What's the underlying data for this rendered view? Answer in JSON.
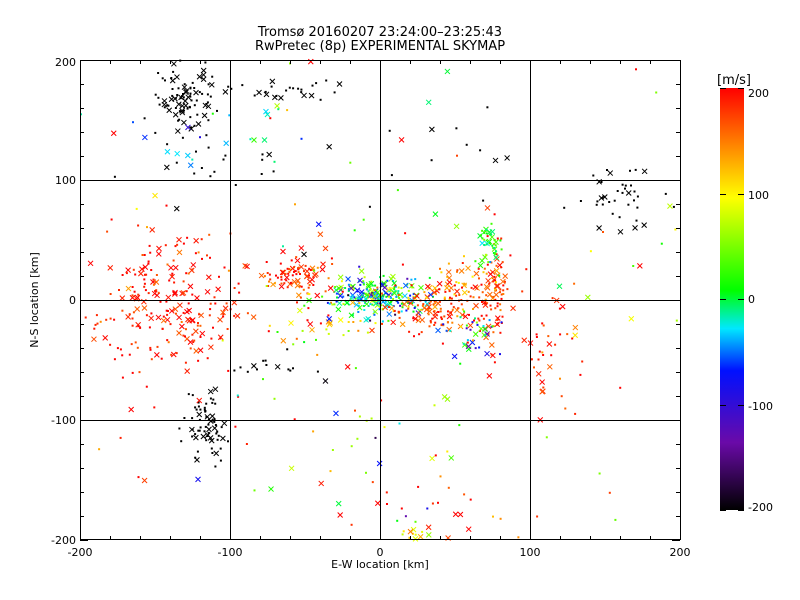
{
  "chart_data": {
    "type": "scatter",
    "title": "Tromsø 20160207 23:24:00–23:25:43",
    "subtitle": "RwPretec (8p) EXPERIMENTAL SKYMAP",
    "xlabel": "E-W location [km]",
    "ylabel": "N-S location [km]",
    "xlim": [
      -200,
      200
    ],
    "ylim": [
      -200,
      200
    ],
    "xticks": [
      "-200",
      "-100",
      "0",
      "100",
      "200"
    ],
    "yticks": [
      "-200",
      "-100",
      "0",
      "100",
      "200"
    ],
    "grid": true,
    "colorbar": {
      "label": "[m/s]",
      "range": [
        -200,
        200
      ],
      "ticks": [
        "200",
        "100",
        "0",
        "-100",
        "-200"
      ],
      "colormap": [
        "#000000",
        "#6a0aa8",
        "#0010ff",
        "#00e8ff",
        "#00ff00",
        "#ffff00",
        "#ff0000"
      ]
    },
    "markers": [
      "dot",
      "cross"
    ],
    "clusters": [
      {
        "x": -130,
        "y": 165,
        "sx": 10,
        "sy": 18,
        "n": 95,
        "v": -200,
        "dv": 0
      },
      {
        "x": -65,
        "y": 175,
        "sx": 18,
        "sy": 6,
        "n": 25,
        "v": -200,
        "dv": 0
      },
      {
        "x": -115,
        "y": 110,
        "sx": 25,
        "sy": 15,
        "n": 18,
        "v": -200,
        "dv": 0
      },
      {
        "x": -115,
        "y": 135,
        "sx": 25,
        "sy": 15,
        "n": 20,
        "v": -40,
        "dv": 40
      },
      {
        "x": -115,
        "y": -105,
        "sx": 7,
        "sy": 15,
        "n": 70,
        "v": -200,
        "dv": 0
      },
      {
        "x": 160,
        "y": 85,
        "sx": 15,
        "sy": 12,
        "n": 40,
        "v": -200,
        "dv": 0
      },
      {
        "x": -75,
        "y": -55,
        "sx": 15,
        "sy": 5,
        "n": 14,
        "v": -200,
        "dv": 0
      },
      {
        "x": -140,
        "y": -5,
        "sx": 25,
        "sy": 28,
        "n": 230,
        "v": 190,
        "dv": 20
      },
      {
        "x": -58,
        "y": 20,
        "sx": 10,
        "sy": 8,
        "n": 90,
        "v": 185,
        "dv": 25
      },
      {
        "x": -40,
        "y": -10,
        "sx": 15,
        "sy": 15,
        "n": 40,
        "v": 120,
        "dv": 60
      },
      {
        "x": -10,
        "y": 5,
        "sx": 15,
        "sy": 8,
        "n": 110,
        "v": 0,
        "dv": 70
      },
      {
        "x": 5,
        "y": 0,
        "sx": 14,
        "sy": 10,
        "n": 130,
        "v": -5,
        "dv": 60
      },
      {
        "x": 35,
        "y": -8,
        "sx": 15,
        "sy": 10,
        "n": 110,
        "v": 170,
        "dv": 30
      },
      {
        "x": 55,
        "y": 15,
        "sx": 10,
        "sy": 10,
        "n": 50,
        "v": 160,
        "dv": 40
      },
      {
        "x": 75,
        "y": 5,
        "sx": 6,
        "sy": 20,
        "n": 90,
        "v": 180,
        "dv": 25
      },
      {
        "x": 72,
        "y": 45,
        "sx": 4,
        "sy": 10,
        "n": 45,
        "v": 20,
        "dv": 25
      },
      {
        "x": 62,
        "y": -25,
        "sx": 10,
        "sy": 8,
        "n": 35,
        "v": -30,
        "dv": 60
      },
      {
        "x": 115,
        "y": -40,
        "sx": 15,
        "sy": 30,
        "n": 40,
        "v": 185,
        "dv": 20
      },
      {
        "x": 35,
        "y": -180,
        "sx": 40,
        "sy": 20,
        "n": 25,
        "v": 180,
        "dv": 30
      },
      {
        "x": 25,
        "y": -195,
        "sx": 5,
        "sy": 4,
        "n": 14,
        "v": 90,
        "dv": 20
      },
      {
        "x": 0,
        "y": -120,
        "sx": 30,
        "sy": 40,
        "n": 20,
        "v": 60,
        "dv": 80
      },
      {
        "x": 0,
        "y": 0,
        "sx": 160,
        "sy": 120,
        "n": 130,
        "v": 120,
        "dv": 120
      },
      {
        "x": 60,
        "y": 130,
        "sx": 40,
        "sy": 25,
        "n": 12,
        "v": -200,
        "dv": 0
      }
    ]
  }
}
